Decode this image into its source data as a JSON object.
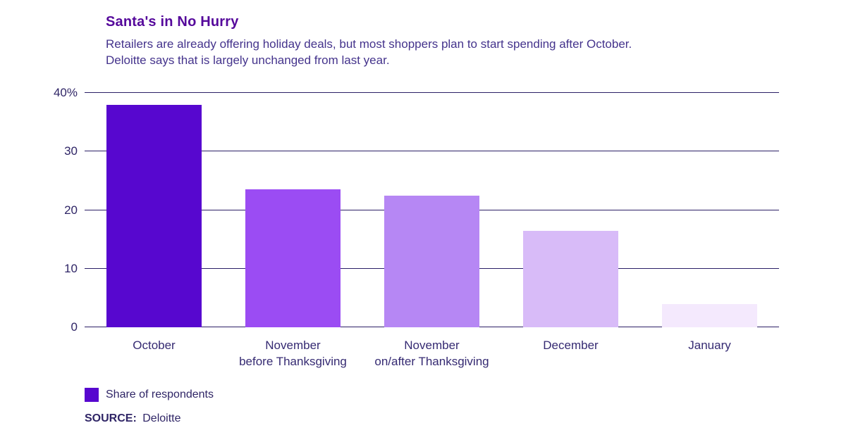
{
  "header": {
    "title": "Santa's in No Hurry",
    "subtitle_line1": "Retailers are already offering holiday deals, but most shoppers plan to start spending after October.",
    "subtitle_line2": "Deloitte says that is largely unchanged from last year."
  },
  "chart_data": {
    "type": "bar",
    "title": "Santa's in No Hurry",
    "subtitle": "Retailers are already offering holiday deals, but most shoppers plan to start spending after October. Deloitte says that is largely unchanged from last year.",
    "categories": [
      "October",
      "November\nbefore Thanksgiving",
      "November\non/after Thanksgiving",
      "December",
      "January"
    ],
    "values": [
      38,
      23.5,
      22.5,
      16.5,
      4
    ],
    "unit": "%",
    "bar_colors": [
      "#5707cf",
      "#9b4cf3",
      "#b687f4",
      "#d8bbf8",
      "#f4e9fd"
    ],
    "ylim": [
      0,
      40
    ],
    "yticks": [
      {
        "label": "40%",
        "value": 40
      },
      {
        "label": "30",
        "value": 30
      },
      {
        "label": "20",
        "value": 20
      },
      {
        "label": "10",
        "value": 10
      },
      {
        "label": "0",
        "value": 0
      }
    ],
    "grid": true,
    "legend_position": "bottom-left",
    "xlabel": "",
    "ylabel": ""
  },
  "legend": {
    "label": "Share of respondents",
    "swatch_color": "#5707cf"
  },
  "source": {
    "prefix": "SOURCE:",
    "text": "Deloitte"
  }
}
